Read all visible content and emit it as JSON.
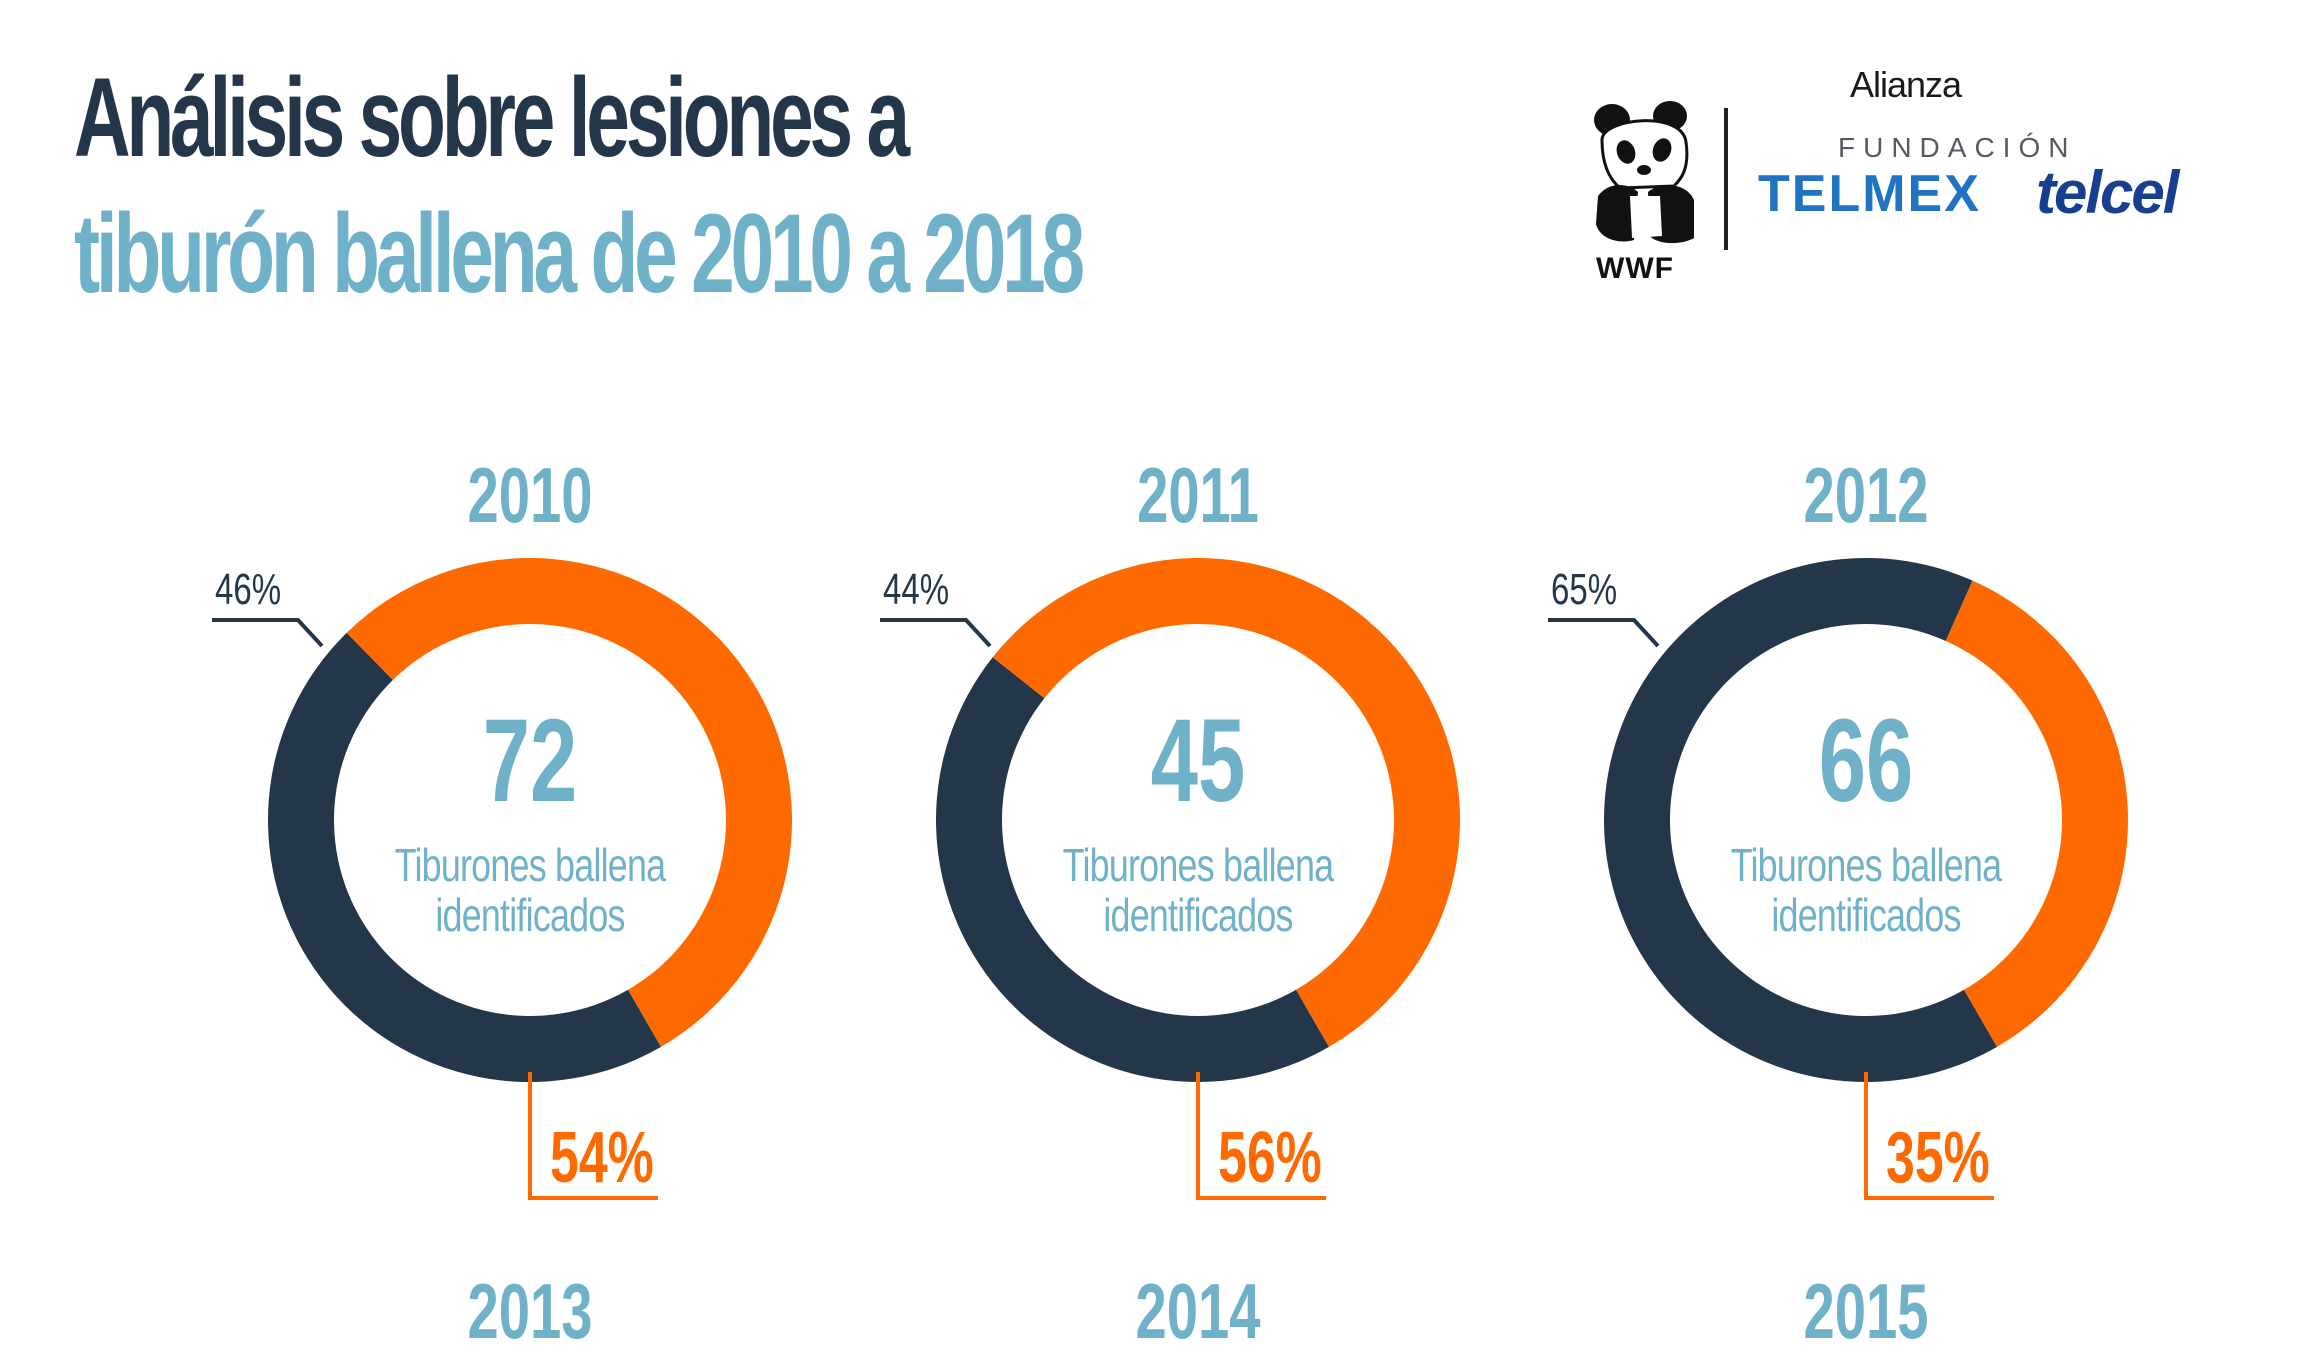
{
  "header": {
    "title_line1": "Análisis sobre lesiones a",
    "title_line2": "tiburón ballena de 2010 a 2018"
  },
  "logos": {
    "alianza": "Alianza",
    "wwf": "WWF",
    "fundacion": "FUNDACIÓN",
    "telmex": "TELMEX",
    "telcel": "telcel"
  },
  "colors": {
    "dark": "#24364a",
    "orange": "#ff6a00",
    "light_blue": "#6fb1c8"
  },
  "chart_data": [
    {
      "type": "pie",
      "title": "2010",
      "center_value": "72",
      "center_label": "Tiburones ballena identificados",
      "slices": [
        {
          "label": "46%",
          "value": 46,
          "color": "#24364a"
        },
        {
          "label": "54%",
          "value": 54,
          "color": "#ff6a00"
        }
      ]
    },
    {
      "type": "pie",
      "title": "2011",
      "center_value": "45",
      "center_label": "Tiburones ballena identificados",
      "slices": [
        {
          "label": "44%",
          "value": 44,
          "color": "#24364a"
        },
        {
          "label": "56%",
          "value": 56,
          "color": "#ff6a00"
        }
      ]
    },
    {
      "type": "pie",
      "title": "2012",
      "center_value": "66",
      "center_label": "Tiburones ballena identificados",
      "slices": [
        {
          "label": "65%",
          "value": 65,
          "color": "#24364a"
        },
        {
          "label": "35%",
          "value": 35,
          "color": "#ff6a00"
        }
      ]
    }
  ],
  "next_row_years": [
    "2013",
    "2014",
    "2015"
  ]
}
